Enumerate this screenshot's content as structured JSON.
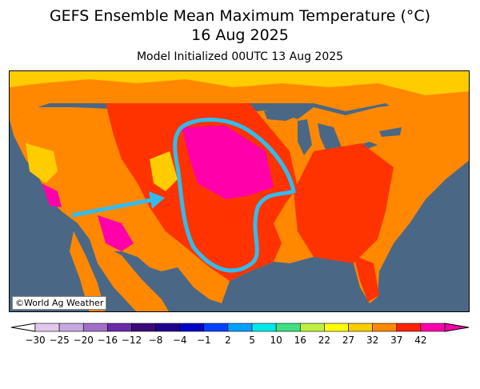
{
  "title": "GEFS Ensemble Mean Maximum Temperature (°C)",
  "valid_date": "16 Aug 2025",
  "init_text": "Model Initialized 00UTC 13 Aug 2025",
  "credit": "©World Ag Weather",
  "colors": {
    "ocean": "#4a6885",
    "land_outer": "#ff9900",
    "hot": "#ff3300",
    "very_hot": "#ff00aa",
    "mild": "#ffcc00",
    "annotation": "#33bbee"
  },
  "legend": {
    "labels": [
      "−30",
      "−25",
      "−20",
      "−16",
      "−12",
      "−8",
      "−4",
      "−1",
      "2",
      "5",
      "10",
      "16",
      "22",
      "27",
      "32",
      "37",
      "42"
    ],
    "colors": [
      "#e0c8ee",
      "#c8a8e0",
      "#a070c8",
      "#6a2aa8",
      "#3a0878",
      "#20008c",
      "#0000c8",
      "#0040ff",
      "#00a0ff",
      "#00e8e8",
      "#40e080",
      "#c0f040",
      "#ffff00",
      "#ffcc00",
      "#ff8800",
      "#ff2200",
      "#ff00aa"
    ]
  }
}
